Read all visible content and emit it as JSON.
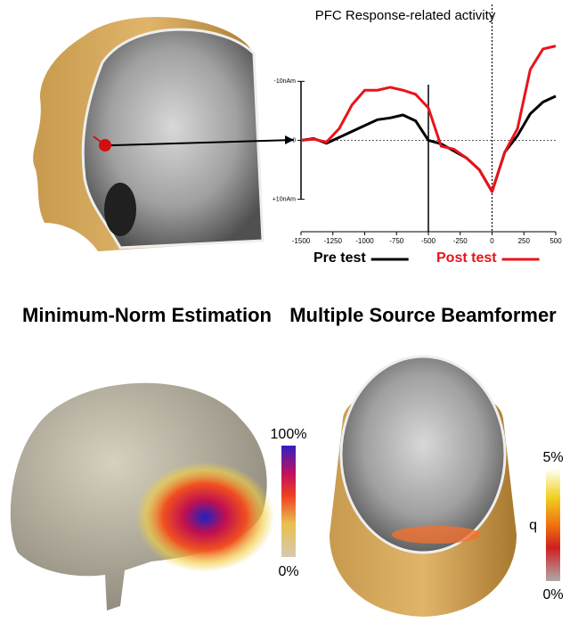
{
  "chart_data": {
    "type": "line",
    "title": "PFC Response-related activity",
    "x": [
      -1500,
      -1400,
      -1300,
      -1200,
      -1100,
      -1000,
      -900,
      -800,
      -700,
      -600,
      -500,
      -400,
      -300,
      -200,
      -100,
      0,
      100,
      200,
      300,
      400,
      500
    ],
    "series": [
      {
        "name": "Pre test",
        "color": "#000000",
        "values": [
          0,
          -0.3,
          0.5,
          -0.5,
          -1.5,
          -2.5,
          -3.5,
          -3.8,
          -4.3,
          -3.3,
          0,
          0.6,
          1.8,
          3,
          5,
          8.7,
          2,
          -0.8,
          -4.5,
          -6.5,
          -7.5
        ]
      },
      {
        "name": "Post test",
        "color": "#e8141a",
        "values": [
          0,
          -0.2,
          0.3,
          -2,
          -6,
          -8.5,
          -8.5,
          -9,
          -8.5,
          -7.8,
          -5.5,
          1,
          1.5,
          3,
          5,
          8.7,
          2,
          -2,
          -12,
          -15.5,
          -16
        ]
      }
    ],
    "xlim": [
      -1500,
      500
    ],
    "xticks": [
      -1500,
      -1250,
      -1000,
      -750,
      -500,
      -250,
      0,
      250,
      500
    ],
    "ylim": [
      15.5,
      -17
    ],
    "yticks": [
      {
        "value": -10,
        "label": "-10nAm"
      },
      0,
      {
        "value": 10,
        "label": "+10nAm"
      }
    ],
    "markers": [
      {
        "x": -500,
        "style": "solid"
      },
      {
        "x": 0,
        "style": "dotted"
      }
    ]
  },
  "panels": [
    {
      "title": "Minimum-Norm Estimation",
      "colorbar_max": "100%",
      "colorbar_min": "0%"
    },
    {
      "title": "Multiple Source Beamformer",
      "colorbar_max": "5%",
      "colorbar_mid": "q",
      "colorbar_min": "0%"
    }
  ]
}
